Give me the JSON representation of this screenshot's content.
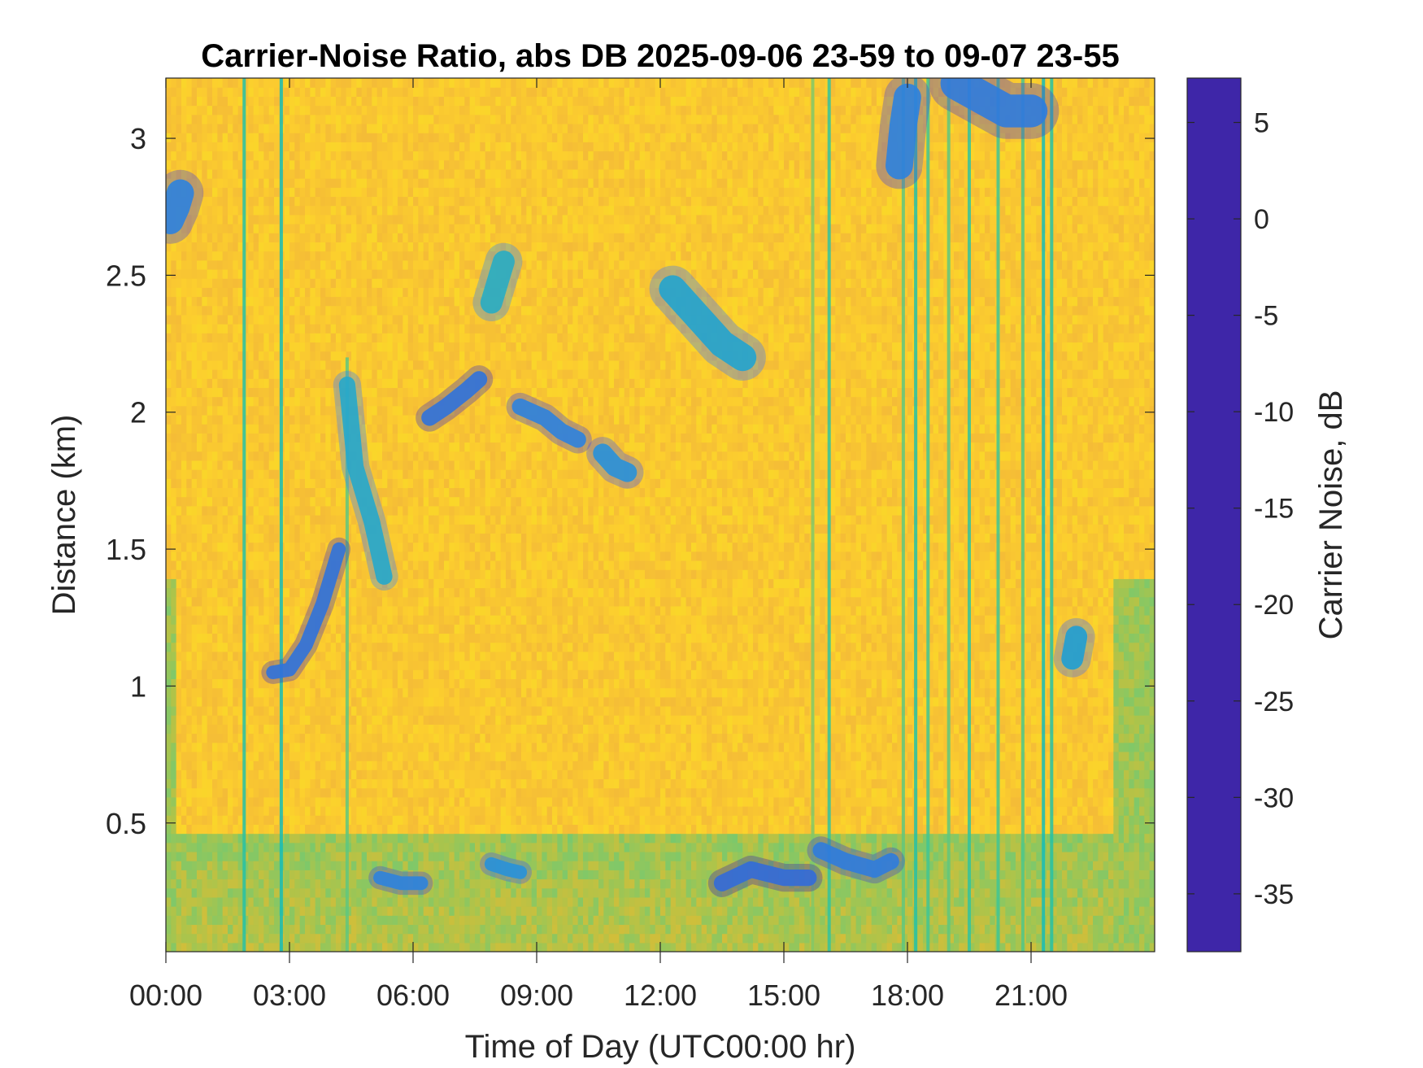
{
  "chart_data": {
    "type": "heatmap",
    "title": "Carrier-Noise Ratio, abs DB 2025-09-06 23-59 to 09-07 23-55",
    "xlabel": "Time of Day (UTC00:00 hr)",
    "ylabel": "Distance (km)",
    "colorbar_label": "Carrier Noise, dB",
    "x_unit": "hours",
    "xlim": [
      0,
      24
    ],
    "ylim": [
      0.03,
      3.22
    ],
    "clim": [
      -38,
      7.3
    ],
    "x_ticks": [
      0,
      3,
      6,
      9,
      12,
      15,
      18,
      21
    ],
    "x_tick_labels": [
      "00:00",
      "03:00",
      "06:00",
      "09:00",
      "12:00",
      "15:00",
      "18:00",
      "21:00"
    ],
    "y_ticks": [
      0.5,
      1,
      1.5,
      2,
      2.5,
      3
    ],
    "y_tick_labels": [
      "0.5",
      "1",
      "1.5",
      "2",
      "2.5",
      "3"
    ],
    "colorbar_ticks": [
      5,
      0,
      -5,
      -10,
      -15,
      -20,
      -25,
      -30,
      -35
    ],
    "colorbar_tick_labels": [
      "5",
      "0",
      "-5",
      "-10",
      "-15",
      "-20",
      "-25",
      "-30",
      "-35"
    ],
    "colormap": [
      "#3e26a8",
      "#4643d8",
      "#4760f2",
      "#397dff",
      "#2795ed",
      "#1fa8db",
      "#0bb9c3",
      "#23c1a8",
      "#4cc78c",
      "#7ec86a",
      "#acc44b",
      "#d1be3a",
      "#f4bb37",
      "#fcce2e",
      "#f6e620",
      "#f9fb0e"
    ],
    "background_level": -31,
    "near_ground_level": -22,
    "features": [
      {
        "kind": "vertical_streak",
        "time": 1.9,
        "z_min": 0.03,
        "z_max": 3.22,
        "level": -14
      },
      {
        "kind": "vertical_streak",
        "time": 2.8,
        "z_min": 0.03,
        "z_max": 3.22,
        "level": -12
      },
      {
        "kind": "vertical_streak",
        "time": 4.4,
        "z_min": 0.03,
        "z_max": 2.2,
        "level": -18
      },
      {
        "kind": "vertical_streak",
        "time": 15.7,
        "z_min": 0.03,
        "z_max": 3.22,
        "level": -20
      },
      {
        "kind": "vertical_streak",
        "time": 16.1,
        "z_min": 0.03,
        "z_max": 3.22,
        "level": -15
      },
      {
        "kind": "vertical_streak",
        "time": 17.9,
        "z_min": 0.03,
        "z_max": 3.22,
        "level": -18
      },
      {
        "kind": "vertical_streak",
        "time": 18.2,
        "z_min": 0.03,
        "z_max": 3.22,
        "level": -14
      },
      {
        "kind": "vertical_streak",
        "time": 18.5,
        "z_min": 0.03,
        "z_max": 3.22,
        "level": -16
      },
      {
        "kind": "vertical_streak",
        "time": 19.0,
        "z_min": 0.03,
        "z_max": 3.22,
        "level": -18
      },
      {
        "kind": "vertical_streak",
        "time": 19.5,
        "z_min": 0.03,
        "z_max": 3.22,
        "level": -15
      },
      {
        "kind": "vertical_streak",
        "time": 20.2,
        "z_min": 0.03,
        "z_max": 3.22,
        "level": -16
      },
      {
        "kind": "vertical_streak",
        "time": 20.8,
        "z_min": 0.03,
        "z_max": 3.22,
        "level": -17
      },
      {
        "kind": "vertical_streak",
        "time": 21.3,
        "z_min": 0.03,
        "z_max": 3.22,
        "level": -12
      },
      {
        "kind": "vertical_streak",
        "time": 21.5,
        "z_min": 0.03,
        "z_max": 3.22,
        "level": -14
      },
      {
        "kind": "cloud_layer",
        "points": [
          [
            2.6,
            1.05
          ],
          [
            3.0,
            1.06
          ],
          [
            3.4,
            1.15
          ],
          [
            3.8,
            1.3
          ],
          [
            4.2,
            1.5
          ]
        ],
        "thickness": 0.05,
        "level": -2
      },
      {
        "kind": "cloud_layer",
        "points": [
          [
            4.4,
            2.1
          ],
          [
            4.6,
            1.8
          ],
          [
            5.0,
            1.6
          ],
          [
            5.3,
            1.4
          ]
        ],
        "thickness": 0.06,
        "level": -10
      },
      {
        "kind": "cloud_layer",
        "points": [
          [
            6.4,
            1.98
          ],
          [
            6.8,
            2.02
          ],
          [
            7.3,
            2.08
          ],
          [
            7.6,
            2.12
          ]
        ],
        "thickness": 0.06,
        "level": -2
      },
      {
        "kind": "cloud_layer",
        "points": [
          [
            8.6,
            2.02
          ],
          [
            9.2,
            1.98
          ],
          [
            9.6,
            1.93
          ],
          [
            10.0,
            1.9
          ]
        ],
        "thickness": 0.06,
        "level": -4
      },
      {
        "kind": "cloud_layer",
        "points": [
          [
            10.6,
            1.85
          ],
          [
            10.9,
            1.8
          ],
          [
            11.2,
            1.78
          ]
        ],
        "thickness": 0.07,
        "level": -6
      },
      {
        "kind": "cloud_layer",
        "points": [
          [
            7.9,
            2.4
          ],
          [
            8.1,
            2.5
          ],
          [
            8.2,
            2.55
          ]
        ],
        "thickness": 0.08,
        "level": -11
      },
      {
        "kind": "cloud_layer",
        "points": [
          [
            12.3,
            2.45
          ],
          [
            12.9,
            2.35
          ],
          [
            13.5,
            2.25
          ],
          [
            14.0,
            2.2
          ]
        ],
        "thickness": 0.1,
        "level": -9
      },
      {
        "kind": "cloud_layer",
        "points": [
          [
            0.1,
            2.7
          ],
          [
            0.25,
            2.75
          ],
          [
            0.35,
            2.8
          ]
        ],
        "thickness": 0.1,
        "level": -4
      },
      {
        "kind": "cloud_layer",
        "points": [
          [
            5.2,
            0.3
          ],
          [
            5.7,
            0.28
          ],
          [
            6.2,
            0.28
          ]
        ],
        "thickness": 0.05,
        "level": -4
      },
      {
        "kind": "cloud_layer",
        "points": [
          [
            7.9,
            0.35
          ],
          [
            8.3,
            0.33
          ],
          [
            8.6,
            0.32
          ]
        ],
        "thickness": 0.05,
        "level": -6
      },
      {
        "kind": "cloud_layer",
        "points": [
          [
            13.5,
            0.28
          ],
          [
            14.2,
            0.33
          ],
          [
            15.0,
            0.3
          ],
          [
            15.6,
            0.3
          ]
        ],
        "thickness": 0.06,
        "level": -1
      },
      {
        "kind": "cloud_layer",
        "points": [
          [
            15.9,
            0.4
          ],
          [
            16.5,
            0.36
          ],
          [
            17.2,
            0.33
          ],
          [
            17.6,
            0.36
          ]
        ],
        "thickness": 0.06,
        "level": -3
      },
      {
        "kind": "cloud_layer",
        "points": [
          [
            19.2,
            3.2
          ],
          [
            19.8,
            3.15
          ],
          [
            20.4,
            3.1
          ],
          [
            21.0,
            3.1
          ]
        ],
        "thickness": 0.12,
        "level": -3
      },
      {
        "kind": "cloud_layer",
        "points": [
          [
            17.8,
            2.9
          ],
          [
            17.9,
            3.05
          ],
          [
            18.0,
            3.15
          ]
        ],
        "thickness": 0.1,
        "level": -4
      },
      {
        "kind": "cloud_layer",
        "points": [
          [
            22.0,
            1.1
          ],
          [
            22.1,
            1.18
          ]
        ],
        "thickness": 0.08,
        "level": -8
      }
    ]
  }
}
